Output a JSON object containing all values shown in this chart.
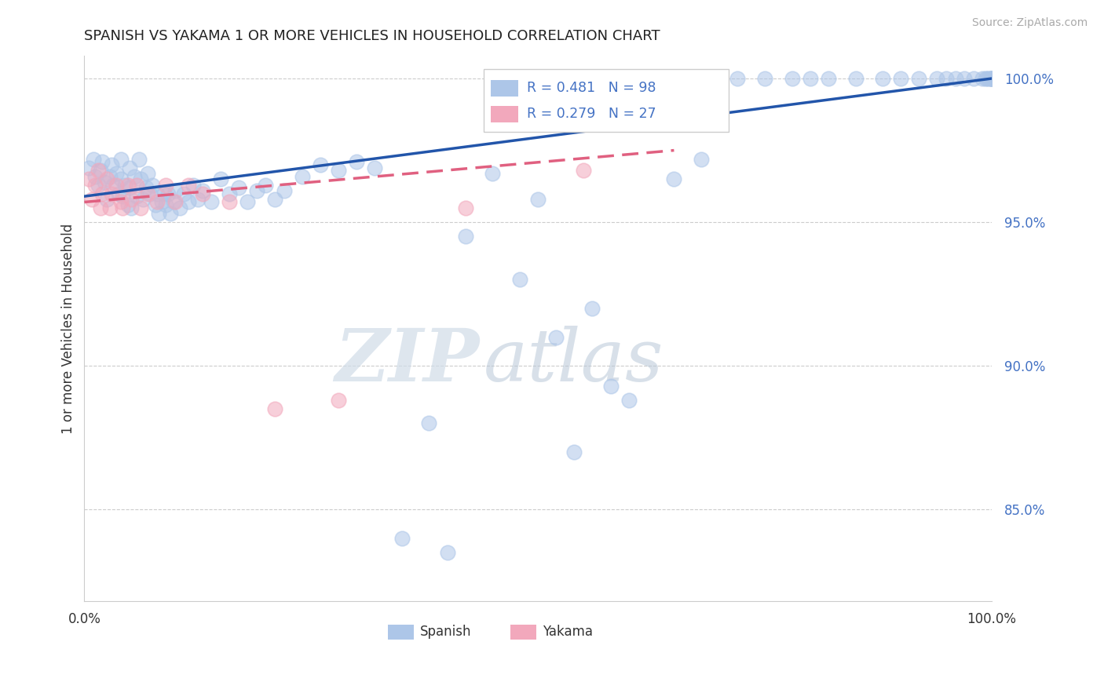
{
  "title": "SPANISH VS YAKAMA 1 OR MORE VEHICLES IN HOUSEHOLD CORRELATION CHART",
  "source": "Source: ZipAtlas.com",
  "ylabel": "1 or more Vehicles in Household",
  "xlim": [
    0.0,
    1.0
  ],
  "ylim": [
    0.818,
    1.008
  ],
  "r_spanish": 0.481,
  "n_spanish": 98,
  "r_yakama": 0.279,
  "n_yakama": 27,
  "spanish_color": "#adc6e8",
  "yakama_color": "#f2a8bc",
  "spanish_line_color": "#2255aa",
  "yakama_line_color": "#e06080",
  "ytick_vals": [
    0.85,
    0.9,
    0.95,
    1.0
  ],
  "ytick_labels": [
    "85.0%",
    "90.0%",
    "95.0%",
    "100.0%"
  ],
  "watermark_zip": "ZIP",
  "watermark_atlas": "atlas",
  "legend_r1": "R = 0.481",
  "legend_n1": "N = 98",
  "legend_r2": "R = 0.279",
  "legend_n2": "N = 27",
  "spanish_x": [
    0.005,
    0.01,
    0.012,
    0.015,
    0.018,
    0.02,
    0.022,
    0.025,
    0.028,
    0.03,
    0.032,
    0.035,
    0.038,
    0.04,
    0.04,
    0.042,
    0.045,
    0.048,
    0.05,
    0.05,
    0.052,
    0.055,
    0.058,
    0.06,
    0.062,
    0.065,
    0.068,
    0.07,
    0.072,
    0.075,
    0.078,
    0.08,
    0.082,
    0.085,
    0.088,
    0.09,
    0.092,
    0.095,
    0.098,
    0.1,
    0.105,
    0.11,
    0.115,
    0.12,
    0.125,
    0.13,
    0.14,
    0.15,
    0.16,
    0.17,
    0.18,
    0.19,
    0.2,
    0.21,
    0.22,
    0.24,
    0.26,
    0.28,
    0.3,
    0.32,
    0.35,
    0.38,
    0.4,
    0.42,
    0.45,
    0.48,
    0.5,
    0.52,
    0.54,
    0.56,
    0.58,
    0.6,
    0.65,
    0.68,
    0.7,
    0.72,
    0.75,
    0.78,
    0.8,
    0.82,
    0.85,
    0.88,
    0.9,
    0.92,
    0.94,
    0.95,
    0.96,
    0.97,
    0.98,
    0.99,
    0.993,
    0.995,
    0.997,
    0.999,
    1.0,
    1.0,
    1.0,
    1.0
  ],
  "spanish_y": [
    0.969,
    0.972,
    0.966,
    0.963,
    0.968,
    0.971,
    0.964,
    0.958,
    0.966,
    0.97,
    0.963,
    0.967,
    0.96,
    0.972,
    0.965,
    0.959,
    0.963,
    0.956,
    0.969,
    0.962,
    0.955,
    0.966,
    0.959,
    0.972,
    0.965,
    0.958,
    0.962,
    0.967,
    0.96,
    0.963,
    0.956,
    0.96,
    0.953,
    0.957,
    0.96,
    0.956,
    0.96,
    0.953,
    0.957,
    0.961,
    0.955,
    0.96,
    0.957,
    0.963,
    0.958,
    0.961,
    0.957,
    0.965,
    0.96,
    0.962,
    0.957,
    0.961,
    0.963,
    0.958,
    0.961,
    0.966,
    0.97,
    0.968,
    0.971,
    0.969,
    0.84,
    0.88,
    0.835,
    0.945,
    0.967,
    0.93,
    0.958,
    0.91,
    0.87,
    0.92,
    0.893,
    0.888,
    0.965,
    0.972,
    1.0,
    1.0,
    1.0,
    1.0,
    1.0,
    1.0,
    1.0,
    1.0,
    1.0,
    1.0,
    1.0,
    1.0,
    1.0,
    1.0,
    1.0,
    1.0,
    1.0,
    1.0,
    1.0,
    1.0,
    1.0,
    1.0,
    1.0,
    1.0
  ],
  "yakama_x": [
    0.005,
    0.008,
    0.012,
    0.015,
    0.018,
    0.02,
    0.025,
    0.028,
    0.03,
    0.035,
    0.04,
    0.042,
    0.048,
    0.052,
    0.058,
    0.062,
    0.07,
    0.08,
    0.09,
    0.1,
    0.115,
    0.13,
    0.16,
    0.21,
    0.28,
    0.42,
    0.55
  ],
  "yakama_y": [
    0.965,
    0.958,
    0.963,
    0.968,
    0.955,
    0.96,
    0.965,
    0.955,
    0.96,
    0.963,
    0.957,
    0.955,
    0.963,
    0.958,
    0.963,
    0.955,
    0.96,
    0.957,
    0.963,
    0.957,
    0.963,
    0.96,
    0.957,
    0.885,
    0.888,
    0.955,
    0.968
  ],
  "sp_trend_x": [
    0.0,
    1.0
  ],
  "sp_trend_y": [
    0.959,
    1.0
  ],
  "yak_trend_x": [
    0.0,
    0.65
  ],
  "yak_trend_y": [
    0.957,
    0.975
  ]
}
